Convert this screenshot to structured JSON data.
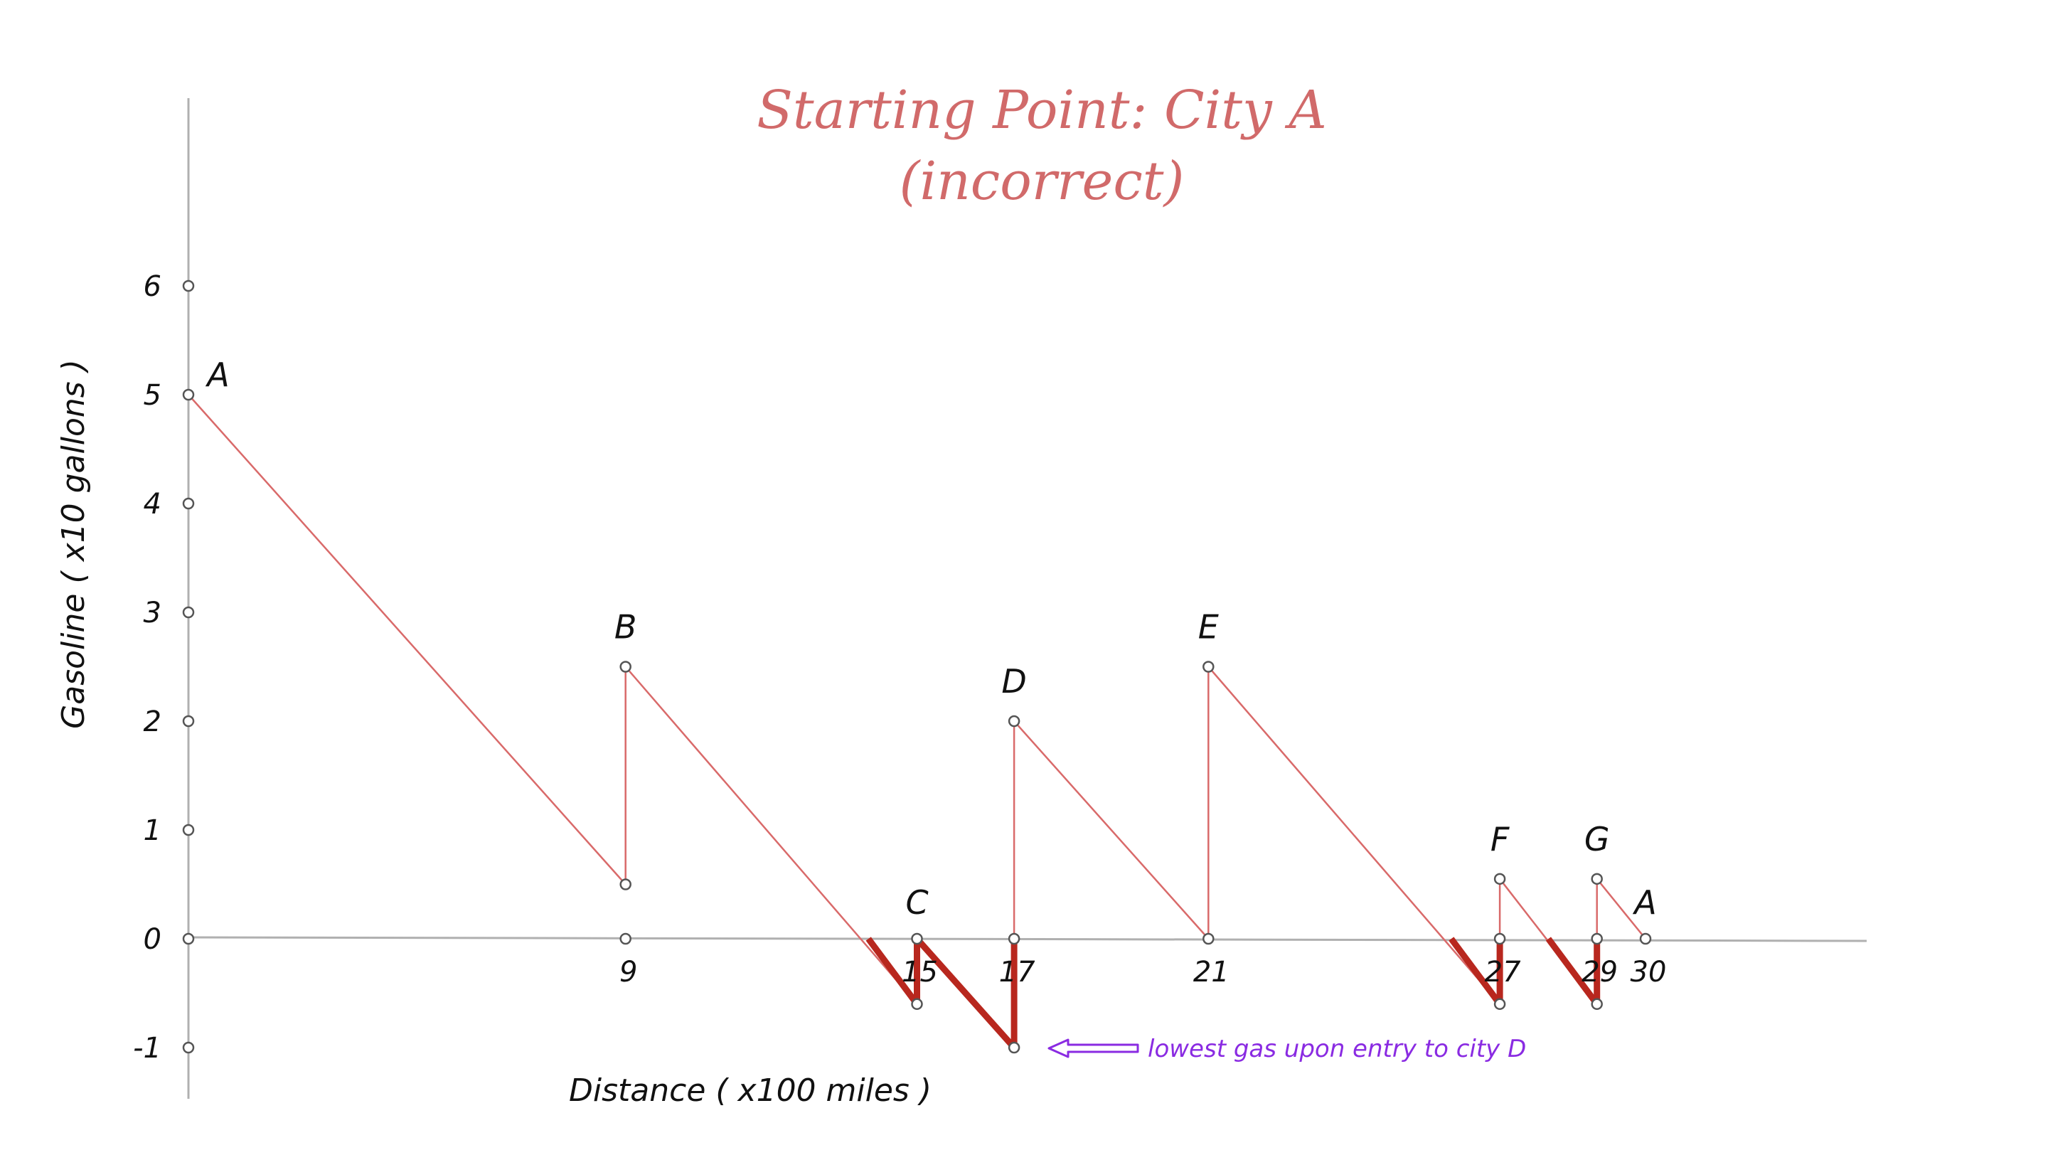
{
  "chart_data": {
    "type": "line",
    "title": "Starting Point: City A",
    "subtitle": "(incorrect)",
    "xlabel": "Distance ( x100 miles )",
    "ylabel": "Gasoline ( x10 gallons )",
    "xlim": [
      0,
      31
    ],
    "ylim": [
      -1,
      6
    ],
    "x_ticks": [
      9,
      15,
      17,
      21,
      27,
      29,
      30
    ],
    "y_ticks": [
      6,
      5,
      4,
      3,
      2,
      1,
      0,
      -1
    ],
    "path": [
      {
        "x": 0,
        "y": 5
      },
      {
        "x": 9,
        "y": 0.5
      },
      {
        "x": 9,
        "y": 2.5
      },
      {
        "x": 15,
        "y": -0.6
      },
      {
        "x": 15,
        "y": 0
      },
      {
        "x": 17,
        "y": -1
      },
      {
        "x": 17,
        "y": 2
      },
      {
        "x": 21,
        "y": 0
      },
      {
        "x": 21,
        "y": 2.5
      },
      {
        "x": 27,
        "y": -0.6
      },
      {
        "x": 27,
        "y": 0.55
      },
      {
        "x": 29,
        "y": -0.6
      },
      {
        "x": 29,
        "y": 0.55
      },
      {
        "x": 30,
        "y": 0
      }
    ],
    "negative_segments": [
      {
        "x1": 14.0,
        "y1": 0,
        "x2": 15,
        "y2": -0.6
      },
      {
        "x1": 15,
        "y1": -0.6,
        "x2": 15,
        "y2": 0
      },
      {
        "x1": 15,
        "y1": 0,
        "x2": 17,
        "y2": -1
      },
      {
        "x1": 17,
        "y1": -1,
        "x2": 17,
        "y2": 0
      },
      {
        "x1": 26.0,
        "y1": 0,
        "x2": 27,
        "y2": -0.6
      },
      {
        "x1": 27,
        "y1": -0.6,
        "x2": 27,
        "y2": 0
      },
      {
        "x1": 28.0,
        "y1": 0,
        "x2": 29,
        "y2": -0.6
      },
      {
        "x1": 29,
        "y1": -0.6,
        "x2": 29,
        "y2": 0
      }
    ],
    "points": [
      {
        "x": 0,
        "y": 5
      },
      {
        "x": 9,
        "y": 0.5
      },
      {
        "x": 9,
        "y": 2.5
      },
      {
        "x": 9,
        "y": 0
      },
      {
        "x": 15,
        "y": -0.6
      },
      {
        "x": 15,
        "y": 0
      },
      {
        "x": 17,
        "y": -1
      },
      {
        "x": 17,
        "y": 2
      },
      {
        "x": 17,
        "y": 0
      },
      {
        "x": 21,
        "y": 0
      },
      {
        "x": 21,
        "y": 2.5
      },
      {
        "x": 27,
        "y": -0.6
      },
      {
        "x": 27,
        "y": 0.55
      },
      {
        "x": 27,
        "y": 0
      },
      {
        "x": 29,
        "y": -0.6
      },
      {
        "x": 29,
        "y": 0.55
      },
      {
        "x": 29,
        "y": 0
      },
      {
        "x": 30,
        "y": 0
      },
      {
        "x": 0,
        "y": 6
      },
      {
        "x": 0,
        "y": 4
      },
      {
        "x": 0,
        "y": 3
      },
      {
        "x": 0,
        "y": 2
      },
      {
        "x": 0,
        "y": 1
      },
      {
        "x": 0,
        "y": 0
      },
      {
        "x": 0,
        "y": -1
      }
    ],
    "city_labels": [
      {
        "text": "A",
        "x": 0,
        "y": 5
      },
      {
        "text": "B",
        "x": 9,
        "y": 2.5
      },
      {
        "text": "C",
        "x": 15,
        "y": 0
      },
      {
        "text": "D",
        "x": 17,
        "y": 2
      },
      {
        "text": "E",
        "x": 21,
        "y": 2.5
      },
      {
        "text": "F",
        "x": 27,
        "y": 0.55
      },
      {
        "text": "G",
        "x": 29,
        "y": 0.55
      },
      {
        "text": "A",
        "x": 30,
        "y": 0
      }
    ],
    "annotation": {
      "text": "lowest gas upon entry to city D",
      "x": 17,
      "y": -1
    },
    "colors": {
      "line": "#d96a6a",
      "negative": "#b8271e",
      "axis": "#b0b0b0",
      "point": "#555555",
      "annotation": "#8a2be2",
      "title": "#d16a6a"
    }
  }
}
